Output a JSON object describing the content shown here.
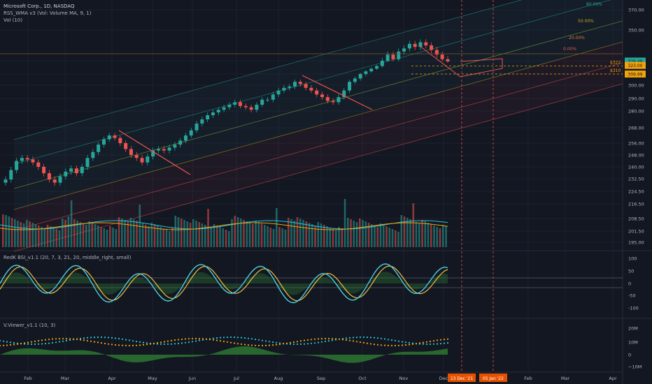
{
  "chart_data": {
    "type": "candlestick",
    "symbol_title": "Microsoft Corp., 1D, NASDAQ",
    "indicator_line_1": "RSS_WMA v3 (Vol: Volume MA, 9, 1)",
    "indicator_line_2": "Vol (10)",
    "x_ticks": [
      "Feb",
      "Mar",
      "Apr",
      "May",
      "Jun",
      "Jul",
      "Aug",
      "Sep",
      "Oct",
      "Nov",
      "Dec",
      "Feb",
      "Mar",
      "Apr"
    ],
    "y_ticks": [
      "370.00",
      "350.00",
      "330.00",
      "310.00",
      "300.00",
      "290.00",
      "280.00",
      "268.00",
      "256.00",
      "248.00",
      "240.00",
      "232.50",
      "224.50",
      "216.50",
      "208.50",
      "201.50",
      "195.00"
    ],
    "price_badges": [
      {
        "label": "329.49",
        "color": "#26a69a"
      },
      {
        "label": "323.00",
        "color": "#f0a30a"
      },
      {
        "label": "309.99",
        "color": "#f0a30a"
      }
    ],
    "level_labels": [
      {
        "label": "$322",
        "value": 322
      },
      {
        "label": "$310",
        "value": 310
      }
    ],
    "channel_labels": [
      {
        "label": "80.00%"
      },
      {
        "label": "50.00%"
      },
      {
        "label": "20.00%"
      },
      {
        "label": "0.00%"
      }
    ],
    "date_labels": [
      "13 Dec '21",
      "05 Jan '22"
    ],
    "close_series": [
      232,
      238,
      244,
      246,
      245,
      243,
      240,
      236,
      232,
      230,
      234,
      237,
      239,
      236,
      240,
      246,
      250,
      255,
      259,
      262,
      260,
      256,
      252,
      248,
      246,
      243,
      247,
      251,
      252,
      251,
      253,
      255,
      258,
      262,
      266,
      271,
      274,
      277,
      279,
      281,
      283,
      285,
      287,
      284,
      283,
      281,
      285,
      289,
      289,
      293,
      296,
      298,
      299,
      303,
      301,
      298,
      296,
      293,
      291,
      288,
      287,
      291,
      296,
      303,
      306,
      310,
      314,
      318,
      322,
      330,
      334,
      331,
      336,
      338,
      341,
      339,
      342,
      340,
      337,
      334,
      331,
      329
    ],
    "panes": [
      {
        "title": "RedK BSI_v1.1 (20, 7, 3, 21, 20, middle_right, small)",
        "y_ticks": [
          "100",
          "50",
          "0",
          "-50",
          "-100"
        ]
      },
      {
        "title": "V.Viewer_v1.1 (10, 3)",
        "y_ticks": [
          "20M",
          "10M",
          "0",
          "−10M"
        ]
      }
    ]
  }
}
